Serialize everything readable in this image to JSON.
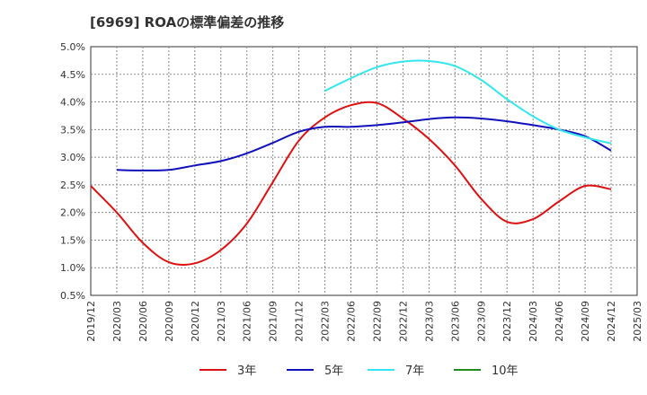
{
  "chart_data": {
    "type": "line",
    "title": "[6969]  ROAの標準偏差の推移",
    "xlabel": "",
    "ylabel": "",
    "ylim": [
      0.5,
      5.0
    ],
    "y_ticks": [
      "0.5%",
      "1.0%",
      "1.5%",
      "2.0%",
      "2.5%",
      "3.0%",
      "3.5%",
      "4.0%",
      "4.5%",
      "5.0%"
    ],
    "x_ticks": [
      "2019/12",
      "2020/03",
      "2020/06",
      "2020/09",
      "2020/12",
      "2021/03",
      "2021/06",
      "2021/09",
      "2021/12",
      "2022/03",
      "2022/06",
      "2022/09",
      "2022/12",
      "2023/03",
      "2023/06",
      "2023/09",
      "2023/12",
      "2024/03",
      "2024/06",
      "2024/09",
      "2024/12",
      "2025/03"
    ],
    "grid": true,
    "legend_position": "bottom",
    "series": [
      {
        "name": "3年",
        "color": "#dd1111",
        "points": [
          [
            "2019/12",
            2.48
          ],
          [
            "2020/03",
            2.0
          ],
          [
            "2020/06",
            1.45
          ],
          [
            "2020/09",
            1.1
          ],
          [
            "2020/12",
            1.08
          ],
          [
            "2021/03",
            1.32
          ],
          [
            "2021/06",
            1.8
          ],
          [
            "2021/09",
            2.55
          ],
          [
            "2021/12",
            3.3
          ],
          [
            "2022/03",
            3.72
          ],
          [
            "2022/06",
            3.94
          ],
          [
            "2022/09",
            3.98
          ],
          [
            "2022/12",
            3.7
          ],
          [
            "2023/03",
            3.33
          ],
          [
            "2023/06",
            2.85
          ],
          [
            "2023/09",
            2.25
          ],
          [
            "2023/12",
            1.83
          ],
          [
            "2024/03",
            1.88
          ],
          [
            "2024/06",
            2.2
          ],
          [
            "2024/09",
            2.48
          ],
          [
            "2024/12",
            2.42
          ]
        ]
      },
      {
        "name": "5年",
        "color": "#1111bb",
        "points": [
          [
            "2020/03",
            2.77
          ],
          [
            "2020/06",
            2.76
          ],
          [
            "2020/09",
            2.77
          ],
          [
            "2020/12",
            2.85
          ],
          [
            "2021/03",
            2.93
          ],
          [
            "2021/06",
            3.07
          ],
          [
            "2021/09",
            3.26
          ],
          [
            "2021/12",
            3.46
          ],
          [
            "2022/03",
            3.55
          ],
          [
            "2022/06",
            3.55
          ],
          [
            "2022/09",
            3.58
          ],
          [
            "2022/12",
            3.63
          ],
          [
            "2023/03",
            3.69
          ],
          [
            "2023/06",
            3.72
          ],
          [
            "2023/09",
            3.7
          ],
          [
            "2023/12",
            3.65
          ],
          [
            "2024/03",
            3.58
          ],
          [
            "2024/06",
            3.5
          ],
          [
            "2024/09",
            3.38
          ],
          [
            "2024/12",
            3.12
          ]
        ]
      },
      {
        "name": "7年",
        "color": "#33e6f0",
        "points": [
          [
            "2022/03",
            4.2
          ],
          [
            "2022/06",
            4.43
          ],
          [
            "2022/09",
            4.63
          ],
          [
            "2022/12",
            4.73
          ],
          [
            "2023/03",
            4.74
          ],
          [
            "2023/06",
            4.65
          ],
          [
            "2023/09",
            4.4
          ],
          [
            "2023/12",
            4.05
          ],
          [
            "2024/03",
            3.74
          ],
          [
            "2024/06",
            3.5
          ],
          [
            "2024/09",
            3.36
          ],
          [
            "2024/12",
            3.25
          ]
        ]
      },
      {
        "name": "10年",
        "color": "#228b22",
        "points": []
      }
    ]
  }
}
